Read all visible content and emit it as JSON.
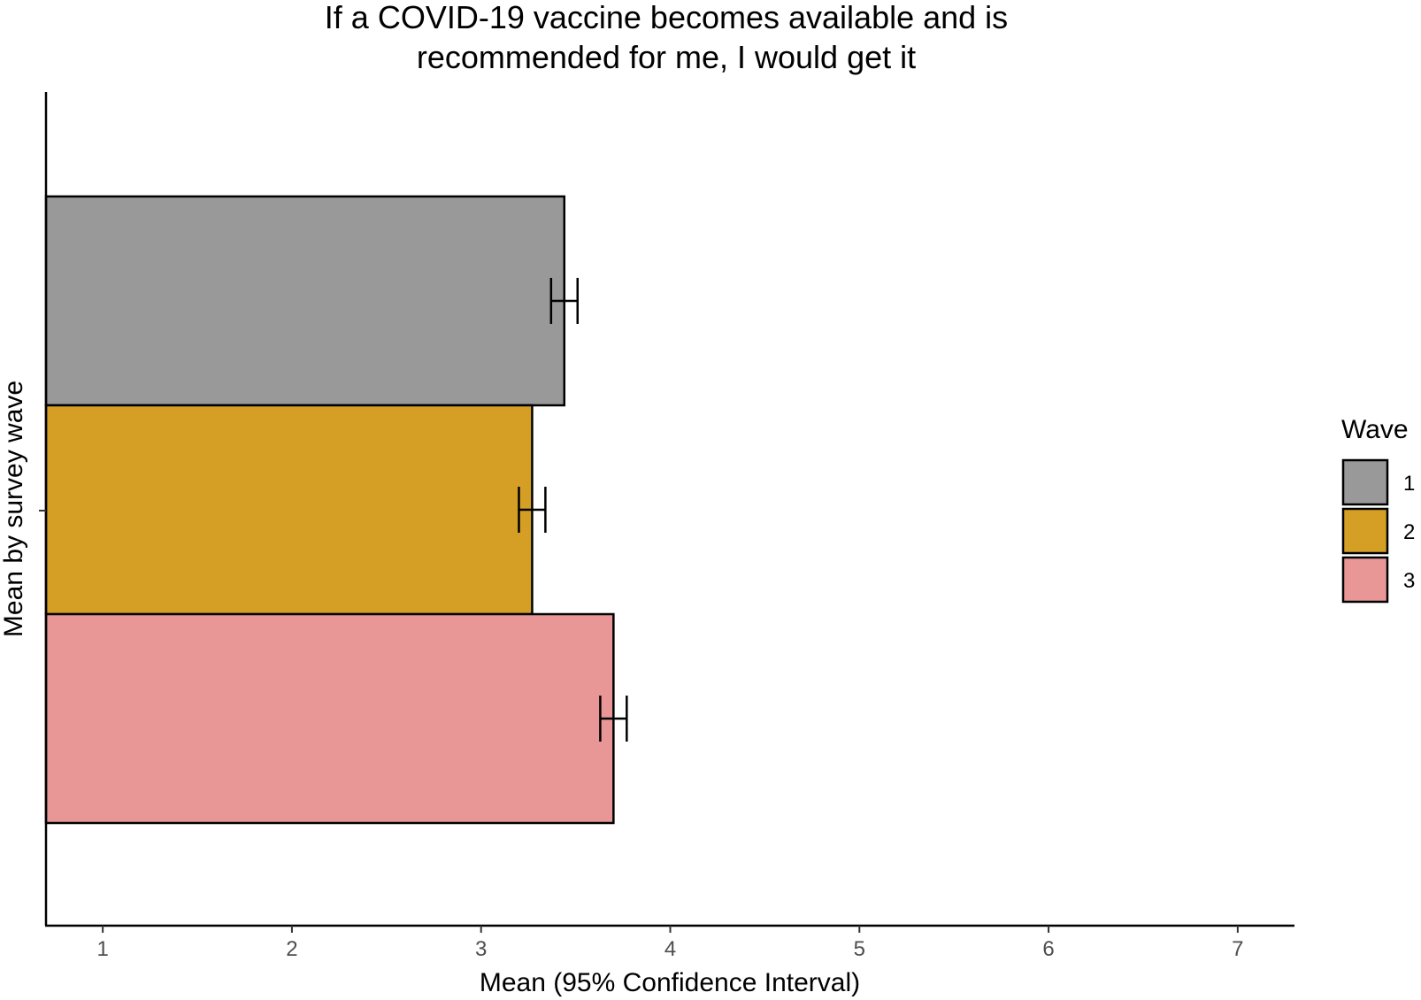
{
  "chart_data": {
    "type": "bar",
    "orientation": "horizontal",
    "title_lines": [
      "If a COVID-19 vaccine becomes available and is",
      "recommended for me, I would get it"
    ],
    "xlabel": "Mean (95% Confidence Interval)",
    "ylabel": "Mean by survey wave",
    "xlim": [
      0.7,
      7.3
    ],
    "x_ticks": [
      "1",
      "2",
      "3",
      "4",
      "5",
      "6",
      "7"
    ],
    "grid": false,
    "legend": {
      "title": "Wave",
      "placement": "right"
    },
    "series": [
      {
        "name": "1",
        "value": 3.44,
        "ci": [
          3.37,
          3.51
        ],
        "color": "#999999"
      },
      {
        "name": "2",
        "value": 3.27,
        "ci": [
          3.2,
          3.34
        ],
        "color": "#D59F26"
      },
      {
        "name": "3",
        "value": 3.7,
        "ci": [
          3.63,
          3.77
        ],
        "color": "#E99697"
      }
    ]
  }
}
